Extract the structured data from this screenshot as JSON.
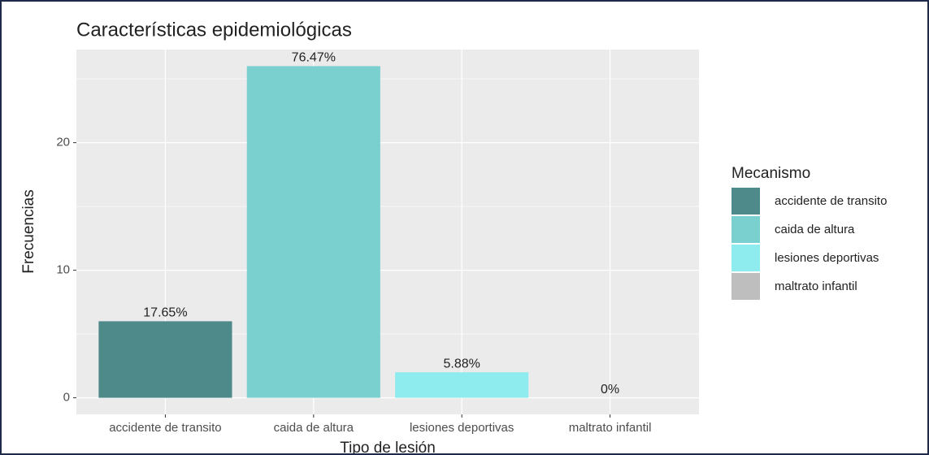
{
  "chart_data": {
    "type": "bar",
    "title": "Características epidemiológicas",
    "x_label": "Tipo de lesión",
    "y_label": "Frecuencias",
    "legend_title": "Mecanismo",
    "categories": [
      "accidente de transito",
      "caida de altura",
      "lesiones deportivas",
      "maltrato infantil"
    ],
    "values": [
      6,
      26,
      2,
      0
    ],
    "value_labels": [
      "17.65%",
      "76.47%",
      "5.88%",
      "0%"
    ],
    "colors": [
      "#4f8a8b",
      "#7acfcf",
      "#8eecee",
      "#bebebe"
    ],
    "ylim": [
      -1.3,
      27.3
    ],
    "yticks": [
      0,
      10,
      20
    ],
    "minor_yticks": [
      5,
      15,
      25
    ],
    "grid": true,
    "legend": "right"
  }
}
